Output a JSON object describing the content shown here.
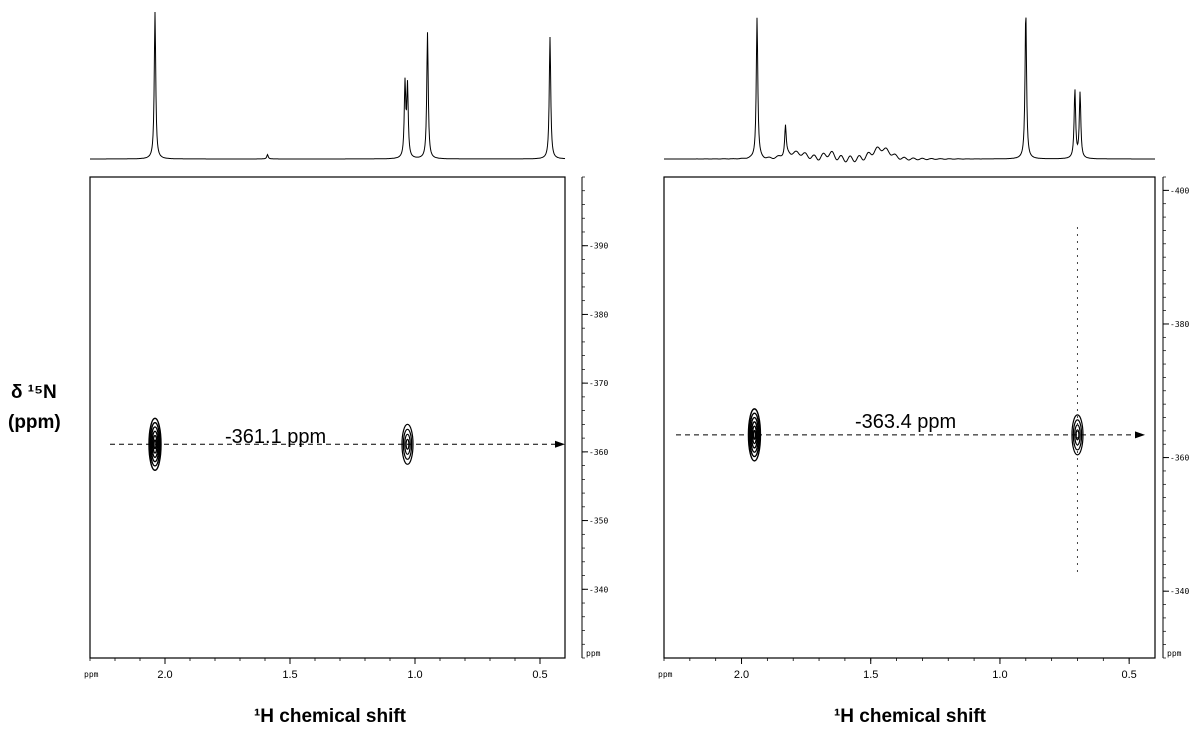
{
  "ylabel_line1": "δ ¹⁵N",
  "ylabel_line2": "(ppm)",
  "chart_data": [
    {
      "type": "contour",
      "xlabel": "¹H chemical shift",
      "x_unit_label": "ppm",
      "y_unit_label": "ppm",
      "xlim": [
        2.3,
        0.4
      ],
      "x_ticks": [
        2.0,
        1.5,
        1.0,
        0.5
      ],
      "x_tick_labels": [
        "2.0",
        "1.5",
        "1.0",
        "0.5"
      ],
      "ylim": [
        400,
        330
      ],
      "y_ticks": [
        390,
        380,
        370,
        360,
        350,
        340
      ],
      "y_tick_labels": [
        "-390",
        "-380",
        "-370",
        "-360",
        "-350",
        "-340"
      ],
      "annotation": "-361.1 ppm",
      "crosspeaks": [
        {
          "x": 2.04,
          "y": 361.1
        },
        {
          "x": 1.03,
          "y": 361.1
        }
      ],
      "proton_spectrum_peaks": [
        {
          "ppm": 2.04,
          "height": 1.0
        },
        {
          "ppm": 1.04,
          "height": 0.5
        },
        {
          "ppm": 1.03,
          "height": 0.48
        },
        {
          "ppm": 0.95,
          "height": 0.86
        },
        {
          "ppm": 0.46,
          "height": 0.83
        },
        {
          "ppm": 1.59,
          "height": 0.03
        }
      ]
    },
    {
      "type": "contour",
      "xlabel": "¹H chemical shift",
      "x_unit_label": "ppm",
      "y_unit_label": "ppm",
      "xlim": [
        2.3,
        0.4
      ],
      "x_ticks": [
        2.0,
        1.5,
        1.0,
        0.5
      ],
      "x_tick_labels": [
        "2.0",
        "1.5",
        "1.0",
        "0.5"
      ],
      "ylim": [
        402,
        330
      ],
      "y_ticks": [
        400,
        380,
        360,
        340
      ],
      "y_tick_labels": [
        "-400",
        "-380",
        "-360",
        "-340"
      ],
      "annotation": "-363.4 ppm",
      "crosspeaks": [
        {
          "x": 1.95,
          "y": 363.4
        },
        {
          "x": 0.7,
          "y": 363.4
        }
      ],
      "proton_spectrum_peaks": [
        {
          "ppm": 1.94,
          "height": 0.95
        },
        {
          "ppm": 1.83,
          "height": 0.2
        },
        {
          "ppm": 0.9,
          "height": 1.0
        },
        {
          "ppm": 0.71,
          "height": 0.46
        },
        {
          "ppm": 0.69,
          "height": 0.44
        }
      ]
    }
  ]
}
